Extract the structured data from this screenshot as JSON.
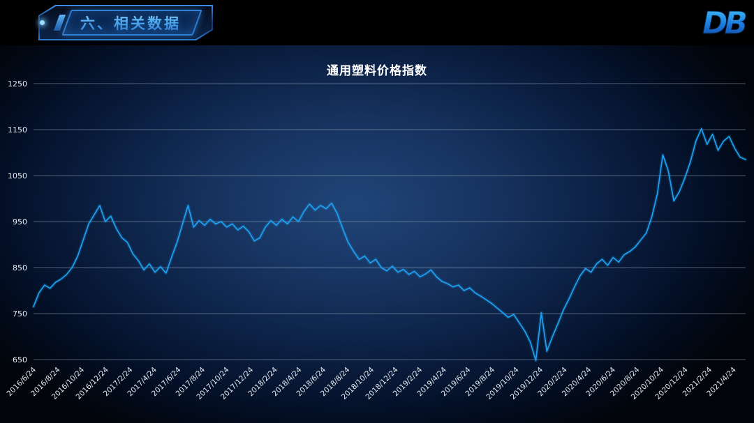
{
  "page": {
    "bg": "#000000"
  },
  "header": {
    "badge_label": "六、相关数据",
    "logo_text": "DB"
  },
  "chart_data": {
    "type": "line",
    "title": "通用塑料价格指数",
    "ylim": [
      650,
      1250
    ],
    "yticks": [
      650,
      750,
      850,
      950,
      1050,
      1150,
      1250
    ],
    "x_labels": [
      "2016/6/24",
      "2016/8/24",
      "2016/10/24",
      "2016/12/24",
      "2017/2/24",
      "2017/4/24",
      "2017/6/24",
      "2017/8/24",
      "2017/10/24",
      "2017/12/24",
      "2018/2/24",
      "2018/4/24",
      "2018/6/24",
      "2018/8/24",
      "2018/10/24",
      "2018/12/24",
      "2019/2/24",
      "2019/4/24",
      "2019/6/24",
      "2019/8/24",
      "2019/10/24",
      "2019/12/24",
      "2020/2/24",
      "2020/4/24",
      "2020/6/24",
      "2020/8/24",
      "2020/10/24",
      "2020/12/24",
      "2021/2/24",
      "2021/4/24"
    ],
    "legend": "none",
    "grid": true,
    "series": [
      {
        "name": "通用塑料价格指数",
        "values": [
          765,
          795,
          812,
          805,
          818,
          825,
          835,
          850,
          875,
          910,
          945,
          965,
          985,
          950,
          962,
          935,
          915,
          905,
          880,
          865,
          845,
          858,
          840,
          852,
          838,
          872,
          905,
          945,
          985,
          938,
          952,
          942,
          955,
          945,
          950,
          938,
          945,
          932,
          940,
          928,
          908,
          915,
          938,
          952,
          942,
          955,
          945,
          960,
          950,
          972,
          988,
          975,
          985,
          978,
          990,
          968,
          935,
          905,
          885,
          868,
          875,
          860,
          868,
          850,
          843,
          853,
          840,
          846,
          835,
          842,
          830,
          836,
          845,
          830,
          820,
          815,
          808,
          812,
          800,
          806,
          795,
          788,
          780,
          772,
          762,
          752,
          742,
          748,
          730,
          712,
          688,
          648,
          752,
          668,
          700,
          728,
          758,
          782,
          808,
          832,
          848,
          840,
          858,
          868,
          855,
          872,
          862,
          878,
          885,
          895,
          910,
          925,
          960,
          1010,
          1095,
          1060,
          995,
          1015,
          1045,
          1080,
          1125,
          1152,
          1118,
          1140,
          1105,
          1125,
          1135,
          1110,
          1090,
          1085
        ]
      }
    ],
    "style": {
      "line_color": "#1ea0f0",
      "grid_color": "#aebac8",
      "tick_color": "#e6ebf1",
      "title_color": "#ffffff",
      "bg_center": "#204578",
      "bg_edge": "#010409"
    }
  }
}
